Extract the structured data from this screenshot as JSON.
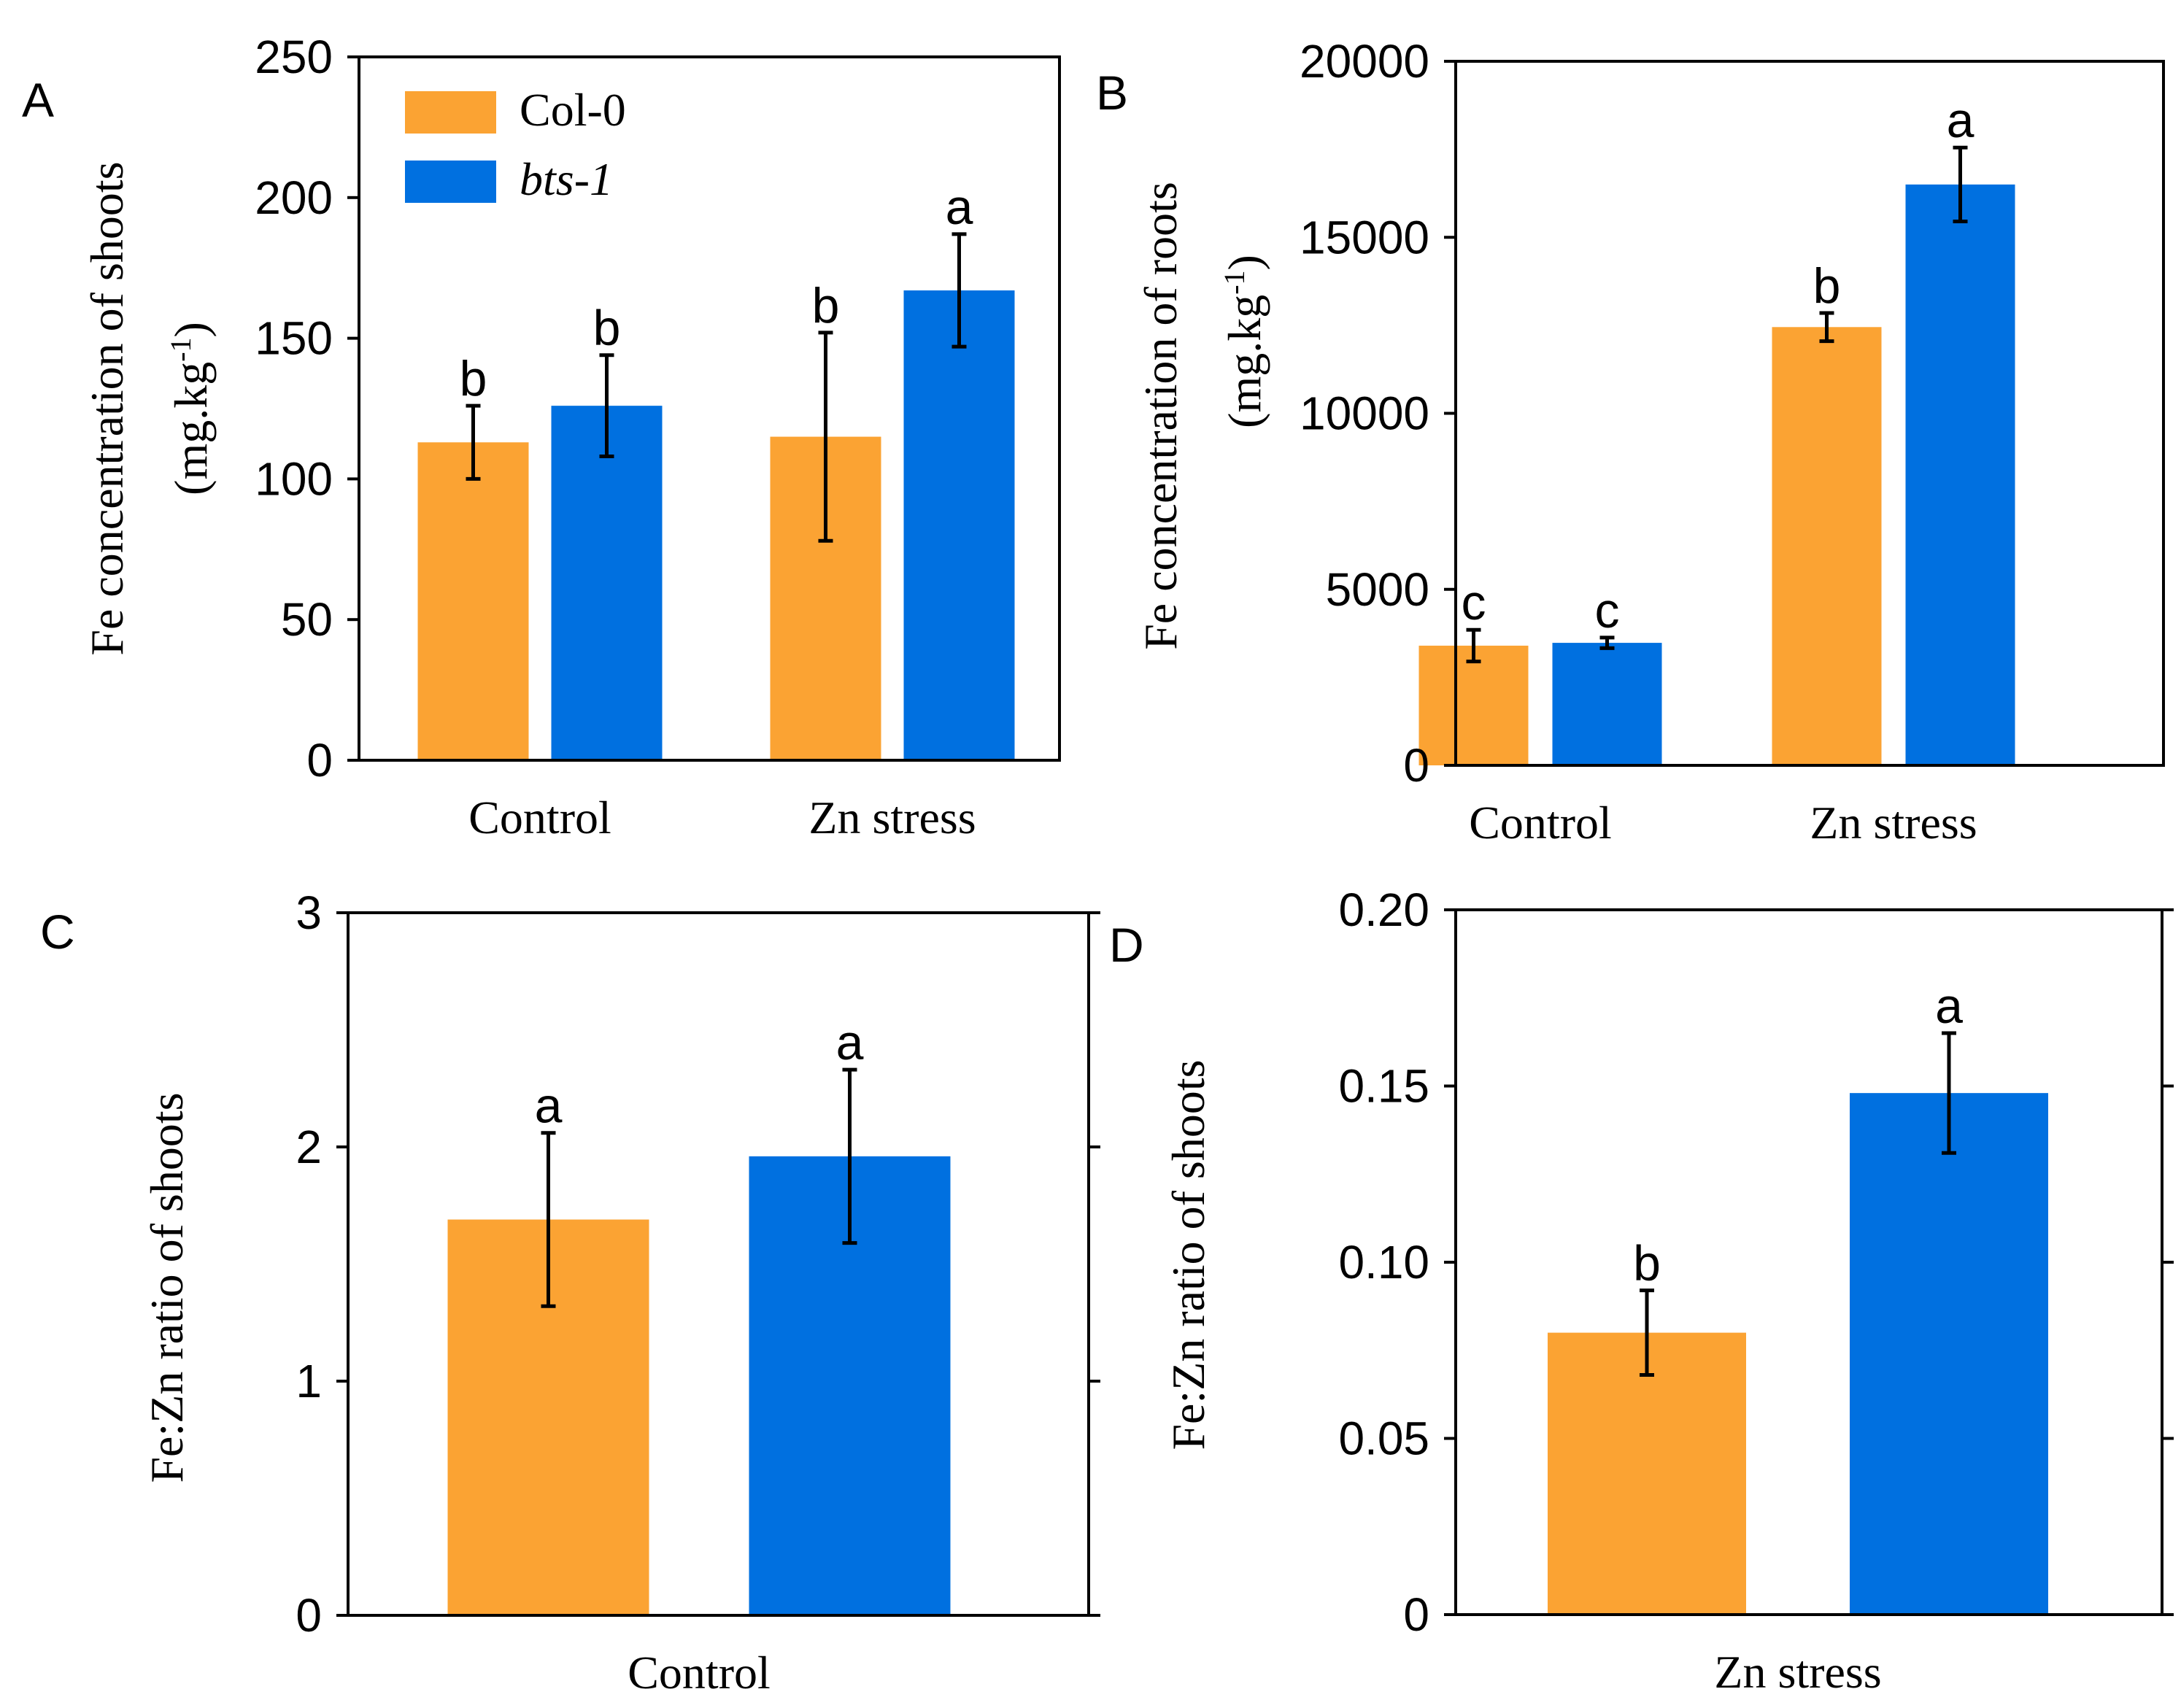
{
  "colors": {
    "col0": "#FBA333",
    "bts1": "#0070E0",
    "axis": "#000000"
  },
  "legend": {
    "items": [
      {
        "label": "Col-0",
        "italic": false
      },
      {
        "label": "bts-1",
        "italic": true
      }
    ]
  },
  "chart_data": [
    {
      "panel": "A",
      "type": "bar",
      "title": "",
      "ylabel_main": "Fe concentration of shoots",
      "ylabel_unit": "(mg.kg-1)",
      "unit_base": "(mg.kg",
      "unit_sup": "-1",
      "unit_close": ")",
      "ylim": [
        0,
        250
      ],
      "yticks": [
        0,
        50,
        100,
        150,
        200,
        250
      ],
      "ytick_labels": [
        "0",
        "50",
        "100",
        "150",
        "200",
        "250"
      ],
      "categories": [
        "Control",
        "Zn stress"
      ],
      "series": [
        {
          "name": "Col-0",
          "values": [
            113,
            115
          ],
          "errors": [
            13,
            37
          ],
          "letters": [
            "b",
            "b"
          ]
        },
        {
          "name": "bts-1",
          "values": [
            126,
            167
          ],
          "errors": [
            18,
            20
          ],
          "letters": [
            "b",
            "a"
          ]
        }
      ]
    },
    {
      "panel": "B",
      "type": "bar",
      "title": "",
      "ylabel_main": "Fe concentration of roots",
      "ylabel_unit": "(mg.kg-1)",
      "unit_base": "(mg.kg",
      "unit_sup": "-1",
      "unit_close": ")",
      "ylim": [
        0,
        20000
      ],
      "yticks": [
        0,
        5000,
        10000,
        15000,
        20000
      ],
      "ytick_labels": [
        "0",
        "5000",
        "10000",
        "15000",
        "20000"
      ],
      "categories": [
        "Control",
        "Zn stress"
      ],
      "series": [
        {
          "name": "Col-0",
          "values": [
            3400,
            12450
          ],
          "errors": [
            450,
            400
          ],
          "letters": [
            "c",
            "b"
          ]
        },
        {
          "name": "bts-1",
          "values": [
            3480,
            16500
          ],
          "errors": [
            150,
            1050
          ],
          "letters": [
            "c",
            "a"
          ]
        }
      ]
    },
    {
      "panel": "C",
      "type": "bar",
      "title": "",
      "ylabel_main": "Fe:Zn ratio of shoots",
      "ylabel_unit": "",
      "ylim": [
        0,
        3
      ],
      "yticks": [
        0,
        1,
        2,
        3
      ],
      "ytick_labels": [
        "0",
        "1",
        "2",
        "3"
      ],
      "categories": [
        "Control"
      ],
      "series": [
        {
          "name": "Col-0",
          "values": [
            1.69
          ],
          "errors": [
            0.37
          ],
          "letters": [
            "a"
          ]
        },
        {
          "name": "bts-1",
          "values": [
            1.96
          ],
          "errors": [
            0.37
          ],
          "letters": [
            "a"
          ]
        }
      ]
    },
    {
      "panel": "D",
      "type": "bar",
      "title": "",
      "ylabel_main": "Fe:Zn ratio of shoots",
      "ylabel_unit": "",
      "ylim": [
        0,
        0.2
      ],
      "yticks": [
        0,
        0.05,
        0.1,
        0.15,
        0.2
      ],
      "ytick_labels": [
        "0",
        "0.05",
        "0.10",
        "0.15",
        "0.20"
      ],
      "categories": [
        "Zn stress"
      ],
      "series": [
        {
          "name": "Col-0",
          "values": [
            0.08
          ],
          "errors": [
            0.012
          ],
          "letters": [
            "b"
          ]
        },
        {
          "name": "bts-1",
          "values": [
            0.148
          ],
          "errors": [
            0.017
          ],
          "letters": [
            "a"
          ]
        }
      ]
    }
  ]
}
